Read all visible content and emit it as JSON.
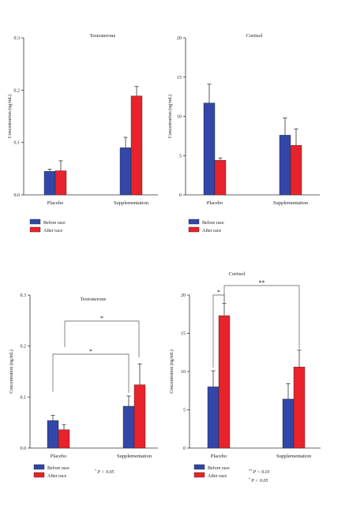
{
  "colors": {
    "before": "#3247a8",
    "after": "#e8232b",
    "axis": "#333333"
  },
  "legend": {
    "before_label": "Before race",
    "after_label": "After race"
  },
  "chart_data": [
    {
      "type": "bar",
      "title": "Testosterone",
      "ylabel": "Concentration (ng/mL)",
      "ylim": [
        0,
        0.3
      ],
      "yticks": [
        "0.0",
        "0.1",
        "0.2",
        "0.3"
      ],
      "categories": [
        "Placebo",
        "Supplementation"
      ],
      "series": [
        {
          "name": "Before race",
          "values": [
            0.045,
            0.09
          ],
          "errors": [
            0.004,
            0.02
          ]
        },
        {
          "name": "After race",
          "values": [
            0.046,
            0.189
          ],
          "errors": [
            0.019,
            0.018
          ]
        }
      ]
    },
    {
      "type": "bar",
      "title": "Cortisol",
      "ylabel": "Concentration (ng/mL)",
      "ylim": [
        0,
        20
      ],
      "yticks": [
        "0",
        "5",
        "10",
        "15",
        "20"
      ],
      "categories": [
        "Placebo",
        "Supplementation"
      ],
      "series": [
        {
          "name": "Before race",
          "values": [
            11.7,
            7.6
          ],
          "errors": [
            2.4,
            2.2
          ]
        },
        {
          "name": "After race",
          "values": [
            4.4,
            6.3
          ],
          "errors": [
            0.3,
            2.1
          ]
        }
      ]
    },
    {
      "type": "bar",
      "title": "Testosterone",
      "ylabel": "Concentration (ng/mL)",
      "ylim": [
        0,
        0.3
      ],
      "yticks": [
        "0.0",
        "0.1",
        "0.2",
        "0.3"
      ],
      "categories": [
        "Placebo",
        "Supplementation"
      ],
      "series": [
        {
          "name": "Before race",
          "values": [
            0.054,
            0.082
          ],
          "errors": [
            0.01,
            0.02
          ]
        },
        {
          "name": "After race",
          "values": [
            0.036,
            0.124
          ],
          "errors": [
            0.01,
            0.041
          ]
        }
      ],
      "significance": [
        {
          "label": "*",
          "between": "Placebo before race vs Supplementation before race"
        },
        {
          "label": "*",
          "between": "Placebo vs Supplementation after race"
        }
      ],
      "note": {
        "mark": "*",
        "text": "P < 0.05"
      }
    },
    {
      "type": "bar",
      "title": "Cortisol",
      "ylabel": "Concentration (ng/mL)",
      "ylim": [
        0,
        20
      ],
      "yticks": [
        "0",
        "5",
        "10",
        "15",
        "20"
      ],
      "categories": [
        "Placebo",
        "Supplementation"
      ],
      "series": [
        {
          "name": "Before race",
          "values": [
            8.0,
            6.4
          ],
          "errors": [
            2.1,
            2.0
          ]
        },
        {
          "name": "After race",
          "values": [
            17.3,
            10.6
          ],
          "errors": [
            1.6,
            2.2
          ]
        }
      ],
      "significance": [
        {
          "label": "*",
          "between": "Placebo before vs after race"
        },
        {
          "label": "**",
          "between": "Placebo after race vs Supplementation after race"
        }
      ],
      "notes": [
        {
          "mark": "**",
          "text": "P < 0.01"
        },
        {
          "mark": "*",
          "text": "P < 0.05"
        }
      ]
    }
  ]
}
